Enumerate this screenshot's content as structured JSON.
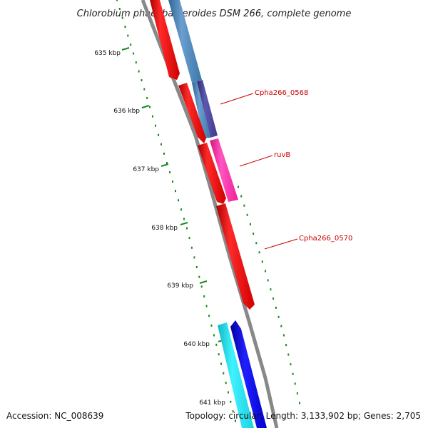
{
  "title": "Chlorobium phaeobacteroides DSM 266, complete genome",
  "footer": {
    "accession": "Accession: NC_008639",
    "stats": "Topology: circular; Length: 3,133,902 bp; Genes: 2,705"
  },
  "scale": {
    "ticks": [
      {
        "label": "635 kbp"
      },
      {
        "label": "636 kbp"
      },
      {
        "label": "637 kbp"
      },
      {
        "label": "638 kbp"
      },
      {
        "label": "639 kbp"
      },
      {
        "label": "640 kbp"
      },
      {
        "label": "641 kbp"
      }
    ]
  },
  "genes": [
    {
      "label": "Cpha266_0568"
    },
    {
      "label": "ruvB"
    },
    {
      "label": "Cpha266_0570"
    }
  ],
  "colors": {
    "backbone": "#888888",
    "scale_tick": "#1a8a1a",
    "gene_red": "#ff0000",
    "gene_blue": "#0000ee",
    "feature_cyan": "#22e6f0",
    "feature_steelblue": "#4a85b8",
    "feature_slate": "#4f4a9c",
    "feature_pink": "#ff2aa8",
    "label_red": "#cc0000"
  }
}
